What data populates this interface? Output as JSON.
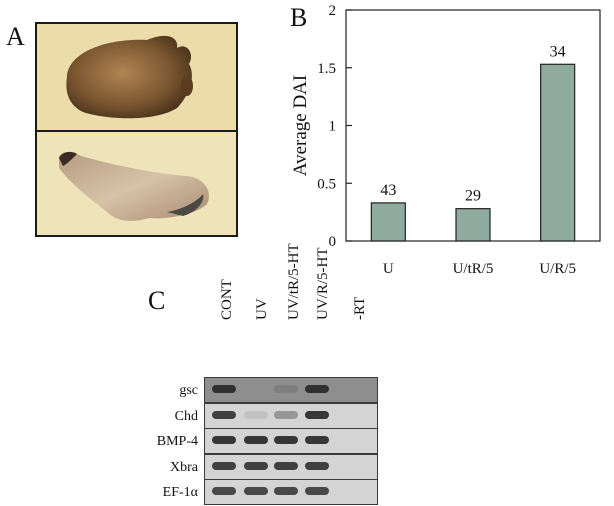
{
  "panel_labels": {
    "a": "A",
    "b": "B",
    "c": "C"
  },
  "panel_a": {
    "photos": [
      {
        "name": "embryo-top"
      },
      {
        "name": "embryo-bottom"
      }
    ]
  },
  "chart_data": {
    "type": "bar",
    "categories": [
      "U",
      "U/tR/5",
      "U/R/5"
    ],
    "values": [
      0.33,
      0.28,
      1.53
    ],
    "data_labels": [
      "43",
      "29",
      "34"
    ],
    "title": "",
    "xlabel": "",
    "ylabel": "Average DAI",
    "ylim": [
      0,
      2
    ],
    "yticks": [
      0,
      0.5,
      1,
      1.5,
      2
    ],
    "ytick_labels": [
      "0",
      "0.5",
      "1",
      "1.5",
      "2"
    ],
    "grid": false,
    "bar_color": "#8faa9f"
  },
  "gel": {
    "lanes": [
      "CONT",
      "UV",
      "UV/tR/5-HT",
      "UV/R/5-HT",
      "-RT"
    ],
    "genes": [
      "gsc",
      "Chd",
      "BMP-4",
      "Xbra",
      "EF-1α"
    ],
    "band_intensity": [
      [
        0.9,
        0.0,
        0.15,
        0.9,
        0.0
      ],
      [
        0.85,
        0.1,
        0.35,
        0.9,
        0.0
      ],
      [
        0.9,
        0.9,
        0.9,
        0.9,
        0.0
      ],
      [
        0.85,
        0.85,
        0.85,
        0.85,
        0.0
      ],
      [
        0.8,
        0.8,
        0.8,
        0.8,
        0.0
      ]
    ]
  }
}
